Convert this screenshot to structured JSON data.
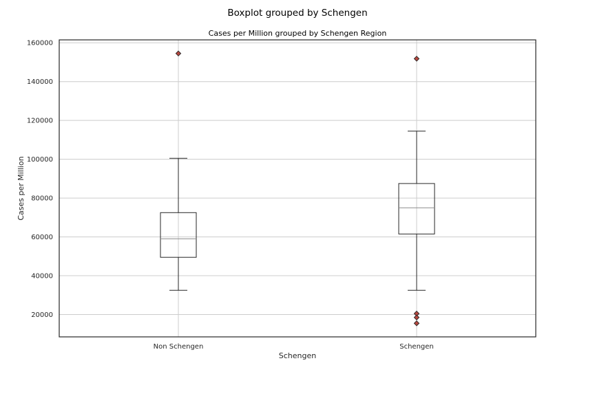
{
  "chart_data": {
    "type": "boxplot",
    "suptitle": "Boxplot grouped by Schengen",
    "title": "Cases per Million grouped by Schengen Region",
    "xlabel": "Schengen",
    "ylabel": "Cases per Million",
    "ylim": [
      8500,
      161500
    ],
    "yticks": [
      20000,
      40000,
      60000,
      80000,
      100000,
      120000,
      140000,
      160000
    ],
    "grid": true,
    "categories": [
      "Non Schengen",
      "Schengen"
    ],
    "boxes": [
      {
        "label": "Non Schengen",
        "whisker_low": 32500,
        "q1": 49500,
        "median": 59000,
        "q3": 72500,
        "whisker_high": 100500,
        "fliers": [
          154500
        ]
      },
      {
        "label": "Schengen",
        "whisker_low": 32500,
        "q1": 61500,
        "median": 75000,
        "q3": 87500,
        "whisker_high": 114500,
        "fliers": [
          151800,
          20500,
          18500,
          15500
        ]
      }
    ],
    "colors": {
      "box": "#262626",
      "median": "#8c8c8c",
      "flier": "#b5473f",
      "grid": "#cccccc",
      "spine": "#262626"
    }
  }
}
